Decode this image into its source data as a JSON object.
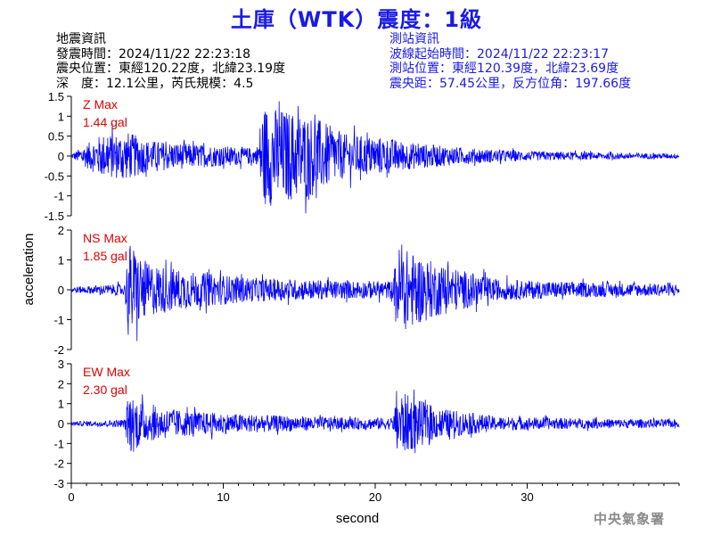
{
  "title": "土庫（WTK）震度：1級",
  "quake_info": {
    "heading": "地震資訊",
    "time": "發震時間：2024/11/22 22:23:18",
    "location": "震央位置：東經120.22度，北緯23.19度",
    "depth_magnitude": "深　度：12.1公里，芮氏規模：4.5"
  },
  "station_info": {
    "heading": "測站資訊",
    "wave_start": "波線起始時間：2024/11/22 22:23:17",
    "location": "測站位置：東經120.39度，北緯23.69度",
    "distance_azimuth": "震央距：57.45公里，反方位角：197.66度"
  },
  "footer": "中央氣象署",
  "colors": {
    "trace": "#0000ff",
    "title": "#1a1ae6",
    "max_label": "#e00000"
  },
  "chart_data": {
    "type": "line",
    "xlabel": "second",
    "ylabel": "acceleration",
    "xlim": [
      0,
      40
    ],
    "xticks": [
      0,
      10,
      20,
      30
    ],
    "panels": [
      {
        "name": "Z",
        "max_title": "Z Max",
        "max_value": "1.44 gal",
        "ylim": [
          -1.5,
          1.5
        ],
        "yticks": [
          -1.5,
          -1,
          -0.5,
          0,
          0.5,
          1,
          1.5
        ],
        "envelope": [
          [
            0,
            0.05
          ],
          [
            2,
            0.55
          ],
          [
            3.8,
            0.6
          ],
          [
            5,
            0.4
          ],
          [
            8,
            0.3
          ],
          [
            12.2,
            0.2
          ],
          [
            12.6,
            1.3
          ],
          [
            16,
            1.0
          ],
          [
            18,
            0.55
          ],
          [
            21,
            0.45
          ],
          [
            22,
            0.35
          ],
          [
            26,
            0.2
          ],
          [
            30,
            0.12
          ],
          [
            36,
            0.08
          ],
          [
            40,
            0.06
          ]
        ]
      },
      {
        "name": "NS",
        "max_title": "NS Max",
        "max_value": "1.85 gal",
        "ylim": [
          -2,
          2
        ],
        "yticks": [
          -2,
          -1,
          0,
          1,
          2
        ],
        "envelope": [
          [
            0,
            0.1
          ],
          [
            3.5,
            0.2
          ],
          [
            3.8,
            1.6
          ],
          [
            5,
            0.9
          ],
          [
            8,
            0.6
          ],
          [
            12,
            0.4
          ],
          [
            18,
            0.3
          ],
          [
            21.2,
            0.3
          ],
          [
            21.4,
            1.5
          ],
          [
            24,
            0.9
          ],
          [
            28,
            0.35
          ],
          [
            34,
            0.25
          ],
          [
            40,
            0.2
          ]
        ]
      },
      {
        "name": "EW",
        "max_title": "EW Max",
        "max_value": "2.30 gal",
        "ylim": [
          -3,
          3
        ],
        "yticks": [
          -3,
          -2,
          -1,
          0,
          1,
          2,
          3
        ],
        "envelope": [
          [
            0,
            0.1
          ],
          [
            3.5,
            0.2
          ],
          [
            3.8,
            1.6
          ],
          [
            5,
            0.9
          ],
          [
            8,
            0.6
          ],
          [
            12,
            0.45
          ],
          [
            18,
            0.3
          ],
          [
            21.2,
            0.3
          ],
          [
            21.4,
            1.7
          ],
          [
            24,
            0.8
          ],
          [
            28,
            0.35
          ],
          [
            34,
            0.25
          ],
          [
            40,
            0.2
          ]
        ]
      }
    ]
  }
}
